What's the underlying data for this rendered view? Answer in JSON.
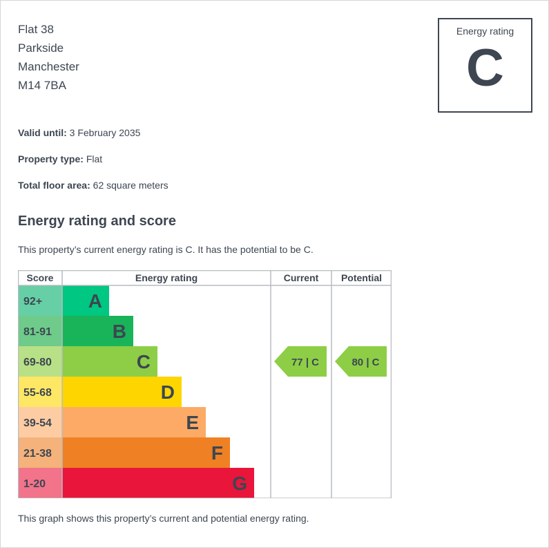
{
  "address": {
    "line1": "Flat 38",
    "line2": "Parkside",
    "line3": "Manchester",
    "line4": "M14 7BA"
  },
  "energy_box": {
    "label": "Energy rating",
    "letter": "C"
  },
  "details": {
    "valid_until_label": "Valid until:",
    "valid_until_value": "3 February 2035",
    "property_type_label": "Property type:",
    "property_type_value": "Flat",
    "floor_area_label": "Total floor area:",
    "floor_area_value": "62 square meters"
  },
  "section_title": "Energy rating and score",
  "summary": "This property’s current energy rating is C. It has the potential to be C.",
  "footer": "This graph shows this property’s current and potential energy rating.",
  "chart_data": {
    "type": "bar",
    "headers": [
      "Score",
      "Energy rating",
      "Current",
      "Potential"
    ],
    "bands": [
      {
        "score": "92+",
        "letter": "A",
        "band_color": "#00c781",
        "score_color": "#66cfa6"
      },
      {
        "score": "81-91",
        "letter": "B",
        "band_color": "#19b459",
        "score_color": "#6ecb8a"
      },
      {
        "score": "69-80",
        "letter": "C",
        "band_color": "#8dce46",
        "score_color": "#b8e086"
      },
      {
        "score": "55-68",
        "letter": "D",
        "band_color": "#ffd500",
        "score_color": "#ffe766"
      },
      {
        "score": "39-54",
        "letter": "E",
        "band_color": "#fcaa65",
        "score_color": "#fdcca3"
      },
      {
        "score": "21-38",
        "letter": "F",
        "band_color": "#ef8023",
        "score_color": "#f5b27b"
      },
      {
        "score": "1-20",
        "letter": "G",
        "band_color": "#e9153b",
        "score_color": "#f2738a"
      }
    ],
    "current": {
      "score": 77,
      "letter": "C",
      "label": "77 | C",
      "color": "#8dce46"
    },
    "potential": {
      "score": 80,
      "letter": "C",
      "label": "80 | C",
      "color": "#8dce46"
    }
  }
}
